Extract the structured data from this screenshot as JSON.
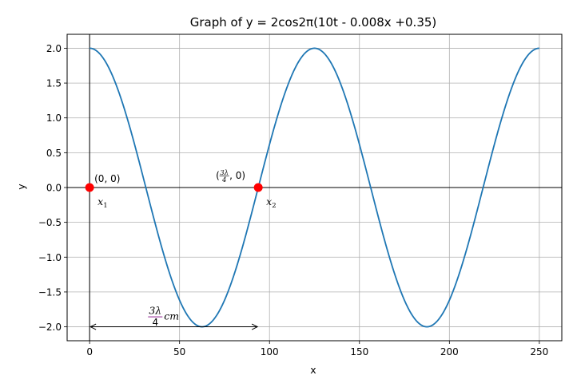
{
  "chart_data": {
    "type": "line",
    "title": "Graph of y = 2cos2π(10t - 0.008x +0.35)",
    "xlabel": "x",
    "ylabel": "y",
    "xlim": [
      -12.5,
      262.5
    ],
    "ylim": [
      -2.2,
      2.2
    ],
    "x_ticks": [
      0,
      50,
      100,
      150,
      200,
      250
    ],
    "x_tick_labels": [
      "0",
      "50",
      "100",
      "150",
      "200",
      "250"
    ],
    "y_ticks": [
      2.0,
      1.5,
      1.0,
      0.5,
      0.0,
      -0.5,
      -1.0,
      -1.5,
      -2.0
    ],
    "y_tick_labels": [
      "2.0",
      "1.5",
      "1.0",
      "0.5",
      "0.0",
      "−0.5",
      "−1.0",
      "−1.5",
      "−2.0"
    ],
    "grid": true,
    "series": [
      {
        "amplitude": 2,
        "wavelength": 125,
        "x_range": [
          0,
          250
        ],
        "color": "#1f77b4",
        "peaks_x": [
          0,
          125,
          250
        ],
        "troughs_x": [
          62.5,
          187.5
        ]
      }
    ],
    "points": [
      {
        "x": 0,
        "y": 0,
        "label": "(0, 0)",
        "sublabel": "x",
        "subscript": "1",
        "color": "#ff0000"
      },
      {
        "x": 93.75,
        "y": 0,
        "label_prefix": "(",
        "label_num": "3λ",
        "label_den": "4",
        "label_suffix": ", 0)",
        "sublabel": "x",
        "subscript": "2",
        "color": "#ff0000"
      }
    ],
    "distance_annotation": {
      "x_start": 0,
      "x_end": 93.75,
      "y": -2.0,
      "label_num": "3λ",
      "label_den": "4",
      "label_unit": "cm",
      "color": "#800080"
    }
  }
}
